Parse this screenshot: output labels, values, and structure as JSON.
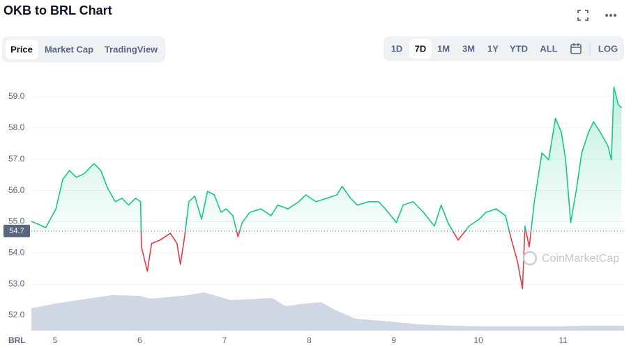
{
  "header": {
    "title": "OKB to BRL Chart"
  },
  "tabs": [
    "Price",
    "Market Cap",
    "TradingView"
  ],
  "ranges": [
    "1D",
    "7D",
    "1M",
    "3M",
    "1Y",
    "YTD",
    "ALL"
  ],
  "scale_button": "LOG",
  "watermark": "CoinMarketCap",
  "chart_data": {
    "type": "line",
    "x_label": "BRL",
    "x": [
      4.72,
      4.8,
      4.89,
      4.93,
      5.01,
      5.09,
      5.17,
      5.25,
      5.34,
      5.42,
      5.46,
      5.54,
      5.62,
      5.71,
      5.79,
      5.87,
      5.95,
      6.01,
      6.02,
      6.06,
      6.09,
      6.14,
      6.24,
      6.36,
      6.44,
      6.48,
      6.53,
      6.58,
      6.65,
      6.73,
      6.8,
      6.88,
      6.96,
      7.02,
      7.1,
      7.16,
      7.21,
      7.3,
      7.43,
      7.55,
      7.63,
      7.75,
      7.88,
      7.96,
      8.08,
      8.21,
      8.33,
      8.39,
      8.49,
      8.57,
      8.7,
      8.82,
      8.9,
      9.03,
      9.11,
      9.23,
      9.35,
      9.48,
      9.56,
      9.64,
      9.76,
      9.89,
      10.01,
      10.09,
      10.21,
      10.32,
      10.38,
      10.46,
      10.52,
      10.55,
      10.6,
      10.66,
      10.75,
      10.83,
      10.91,
      10.98,
      11.03,
      11.09,
      11.16,
      11.22,
      11.3,
      11.36,
      11.44,
      11.53,
      11.57,
      11.6,
      11.65,
      11.69
    ],
    "series": [
      {
        "name": "Price",
        "values": [
          55.01,
          54.92,
          54.81,
          55.01,
          55.41,
          56.35,
          56.64,
          56.42,
          56.53,
          56.75,
          56.86,
          56.64,
          56.08,
          55.64,
          55.75,
          55.53,
          55.75,
          55.64,
          54.19,
          53.74,
          53.41,
          54.3,
          54.41,
          54.63,
          54.3,
          53.63,
          54.52,
          55.64,
          55.82,
          55.08,
          55.97,
          55.86,
          55.3,
          55.41,
          55.19,
          54.52,
          54.97,
          55.3,
          55.41,
          55.19,
          55.53,
          55.41,
          55.64,
          55.86,
          55.64,
          55.75,
          55.86,
          56.13,
          55.75,
          55.53,
          55.64,
          55.64,
          55.41,
          54.97,
          55.53,
          55.64,
          55.3,
          54.86,
          55.53,
          54.97,
          54.41,
          54.86,
          55.08,
          55.3,
          55.41,
          55.19,
          54.52,
          53.74,
          52.85,
          54.86,
          54.19,
          55.64,
          57.2,
          56.98,
          58.31,
          57.86,
          56.98,
          54.97,
          56.08,
          57.2,
          57.86,
          58.2,
          57.86,
          57.42,
          56.98,
          59.31,
          58.76,
          58.64
        ]
      }
    ],
    "baseline": 54.7,
    "up_color": "#16c784",
    "down_color": "#ea3943",
    "xlim": [
      4.72,
      11.72
    ],
    "xticks": [
      5,
      6,
      7,
      8,
      9,
      10,
      11
    ],
    "ylim": [
      51.51,
      59.87
    ],
    "yticks": [
      {
        "value": 52,
        "label": "52.0"
      },
      {
        "value": 53,
        "label": "53.0"
      },
      {
        "value": 54,
        "label": "54.0"
      },
      {
        "value": 55,
        "label": "55.0"
      },
      {
        "value": 56,
        "label": "56.0"
      },
      {
        "value": 57,
        "label": "57.0"
      },
      {
        "value": 58,
        "label": "58.0"
      },
      {
        "value": 59,
        "label": "59.0"
      }
    ],
    "grid": true
  }
}
